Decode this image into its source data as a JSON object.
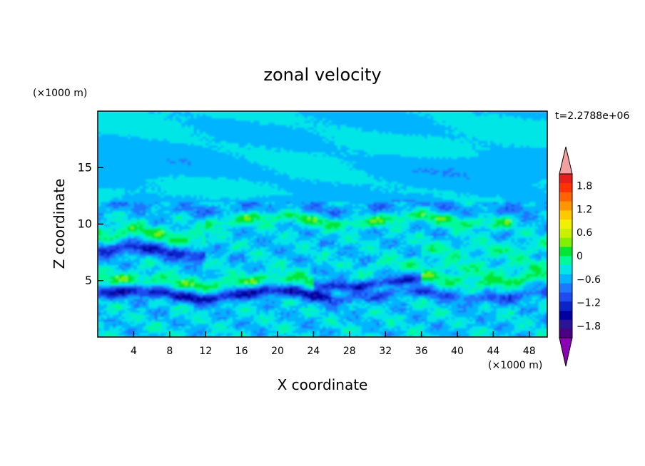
{
  "chart_data": {
    "type": "heatmap",
    "title": "zonal velocity",
    "xlabel": "X coordinate",
    "ylabel": "Z coordinate",
    "x_unit": "(×1000 m)",
    "y_unit": "(×1000 m)",
    "time_label": "t=2.2788e+06",
    "xlim": [
      0,
      50
    ],
    "ylim": [
      0,
      20
    ],
    "x_ticks": [
      "4",
      "8",
      "12",
      "16",
      "20",
      "24",
      "28",
      "32",
      "36",
      "40",
      "44",
      "48"
    ],
    "x_tick_values": [
      4,
      8,
      12,
      16,
      20,
      24,
      28,
      32,
      36,
      40,
      44,
      48
    ],
    "y_ticks": [
      "5",
      "10",
      "15"
    ],
    "y_tick_values": [
      5,
      10,
      15
    ],
    "colorbar": {
      "range": [
        -2.1,
        2.1
      ],
      "step": 0.3,
      "tick_labels": [
        "1.8",
        "1.2",
        "0.6",
        "0",
        "−0.6",
        "−1.2",
        "−1.8"
      ],
      "tick_values": [
        1.8,
        1.2,
        0.6,
        0,
        -0.6,
        -1.2,
        -1.8
      ],
      "colors": [
        "#4B0082",
        "#2B1596",
        "#0000A0",
        "#0A24C8",
        "#1E4BF0",
        "#1E78FF",
        "#00B4FF",
        "#00E6E6",
        "#00FA9A",
        "#00E632",
        "#7FF000",
        "#C8F000",
        "#F0F000",
        "#FFC800",
        "#FF9600",
        "#FF6400",
        "#FF3200",
        "#E61E1E"
      ],
      "under_color": "#8B00B4",
      "over_color": "#F4A0A0"
    },
    "bands": [
      {
        "z": 3.8,
        "amp": -1.2,
        "width": 0.5,
        "x_range": [
          0,
          50
        ]
      },
      {
        "z": 4.9,
        "amp": 0.6,
        "width": 0.6,
        "x_range": [
          0,
          24
        ]
      },
      {
        "z": 3.9,
        "amp": 0.6,
        "width": 0.5,
        "x_range": [
          26,
          50
        ]
      },
      {
        "z": 4.8,
        "amp": -1.0,
        "width": 0.4,
        "x_range": [
          24,
          36
        ]
      },
      {
        "z": 5.2,
        "amp": 0.6,
        "width": 0.6,
        "x_range": [
          36,
          50
        ]
      },
      {
        "z": 7.6,
        "amp": -1.0,
        "width": 0.6,
        "x_range": [
          0,
          12
        ]
      },
      {
        "z": 9.0,
        "amp": 0.6,
        "width": 0.7,
        "x_range": [
          0,
          12
        ]
      },
      {
        "z": 6.3,
        "amp": 0.3,
        "width": 0.5,
        "x_range": [
          30,
          50
        ]
      },
      {
        "z": 10.4,
        "amp": 0.6,
        "width": 0.5,
        "x_range": [
          12,
          46
        ]
      },
      {
        "z": 11.5,
        "amp": -0.3,
        "width": 0.6,
        "x_range": [
          0,
          50
        ]
      },
      {
        "z": 7.8,
        "amp": 0.3,
        "width": 0.8,
        "x_range": [
          36,
          50
        ]
      }
    ]
  }
}
